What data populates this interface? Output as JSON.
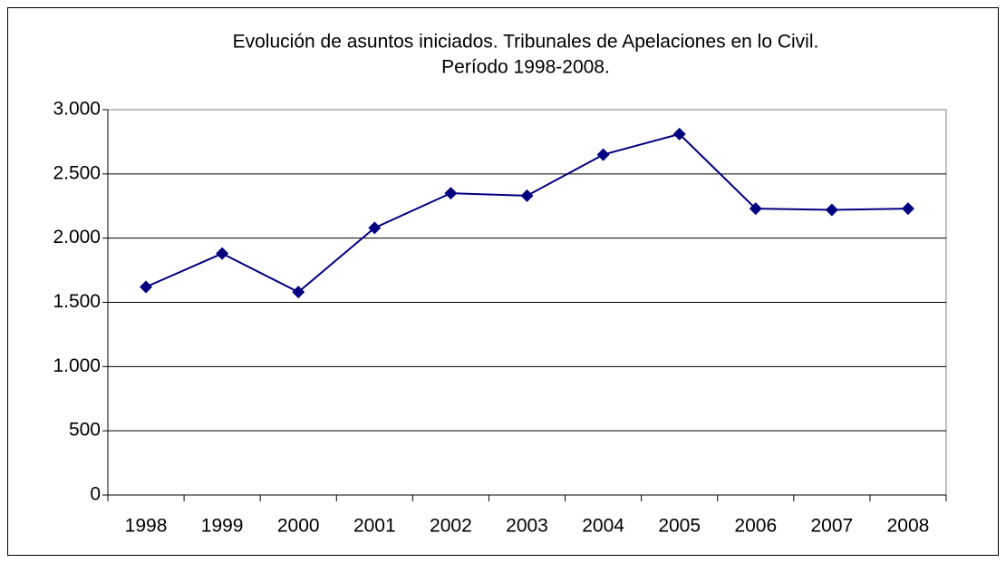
{
  "chart_data": {
    "type": "line",
    "title": [
      "Evolución de asuntos iniciados. Tribunales de Apelaciones en lo Civil.",
      "Período 1998-2008."
    ],
    "categories": [
      "1998",
      "1999",
      "2000",
      "2001",
      "2002",
      "2003",
      "2004",
      "2005",
      "2006",
      "2007",
      "2008"
    ],
    "series": [
      {
        "name": null,
        "color": "#000080",
        "values": [
          1620,
          1880,
          1580,
          2080,
          2350,
          2330,
          2650,
          2810,
          2230,
          2220,
          2230
        ]
      }
    ],
    "ylim": [
      0,
      3000
    ],
    "yticks": [
      0,
      500,
      {
        "value": 1000,
        "label": "1.000"
      },
      {
        "value": 1500,
        "label": "1.500"
      },
      {
        "value": 2000,
        "label": "2.000"
      },
      {
        "value": 2500,
        "label": "2.500"
      },
      {
        "value": 3000,
        "label": "3.000"
      }
    ],
    "grid": true
  }
}
